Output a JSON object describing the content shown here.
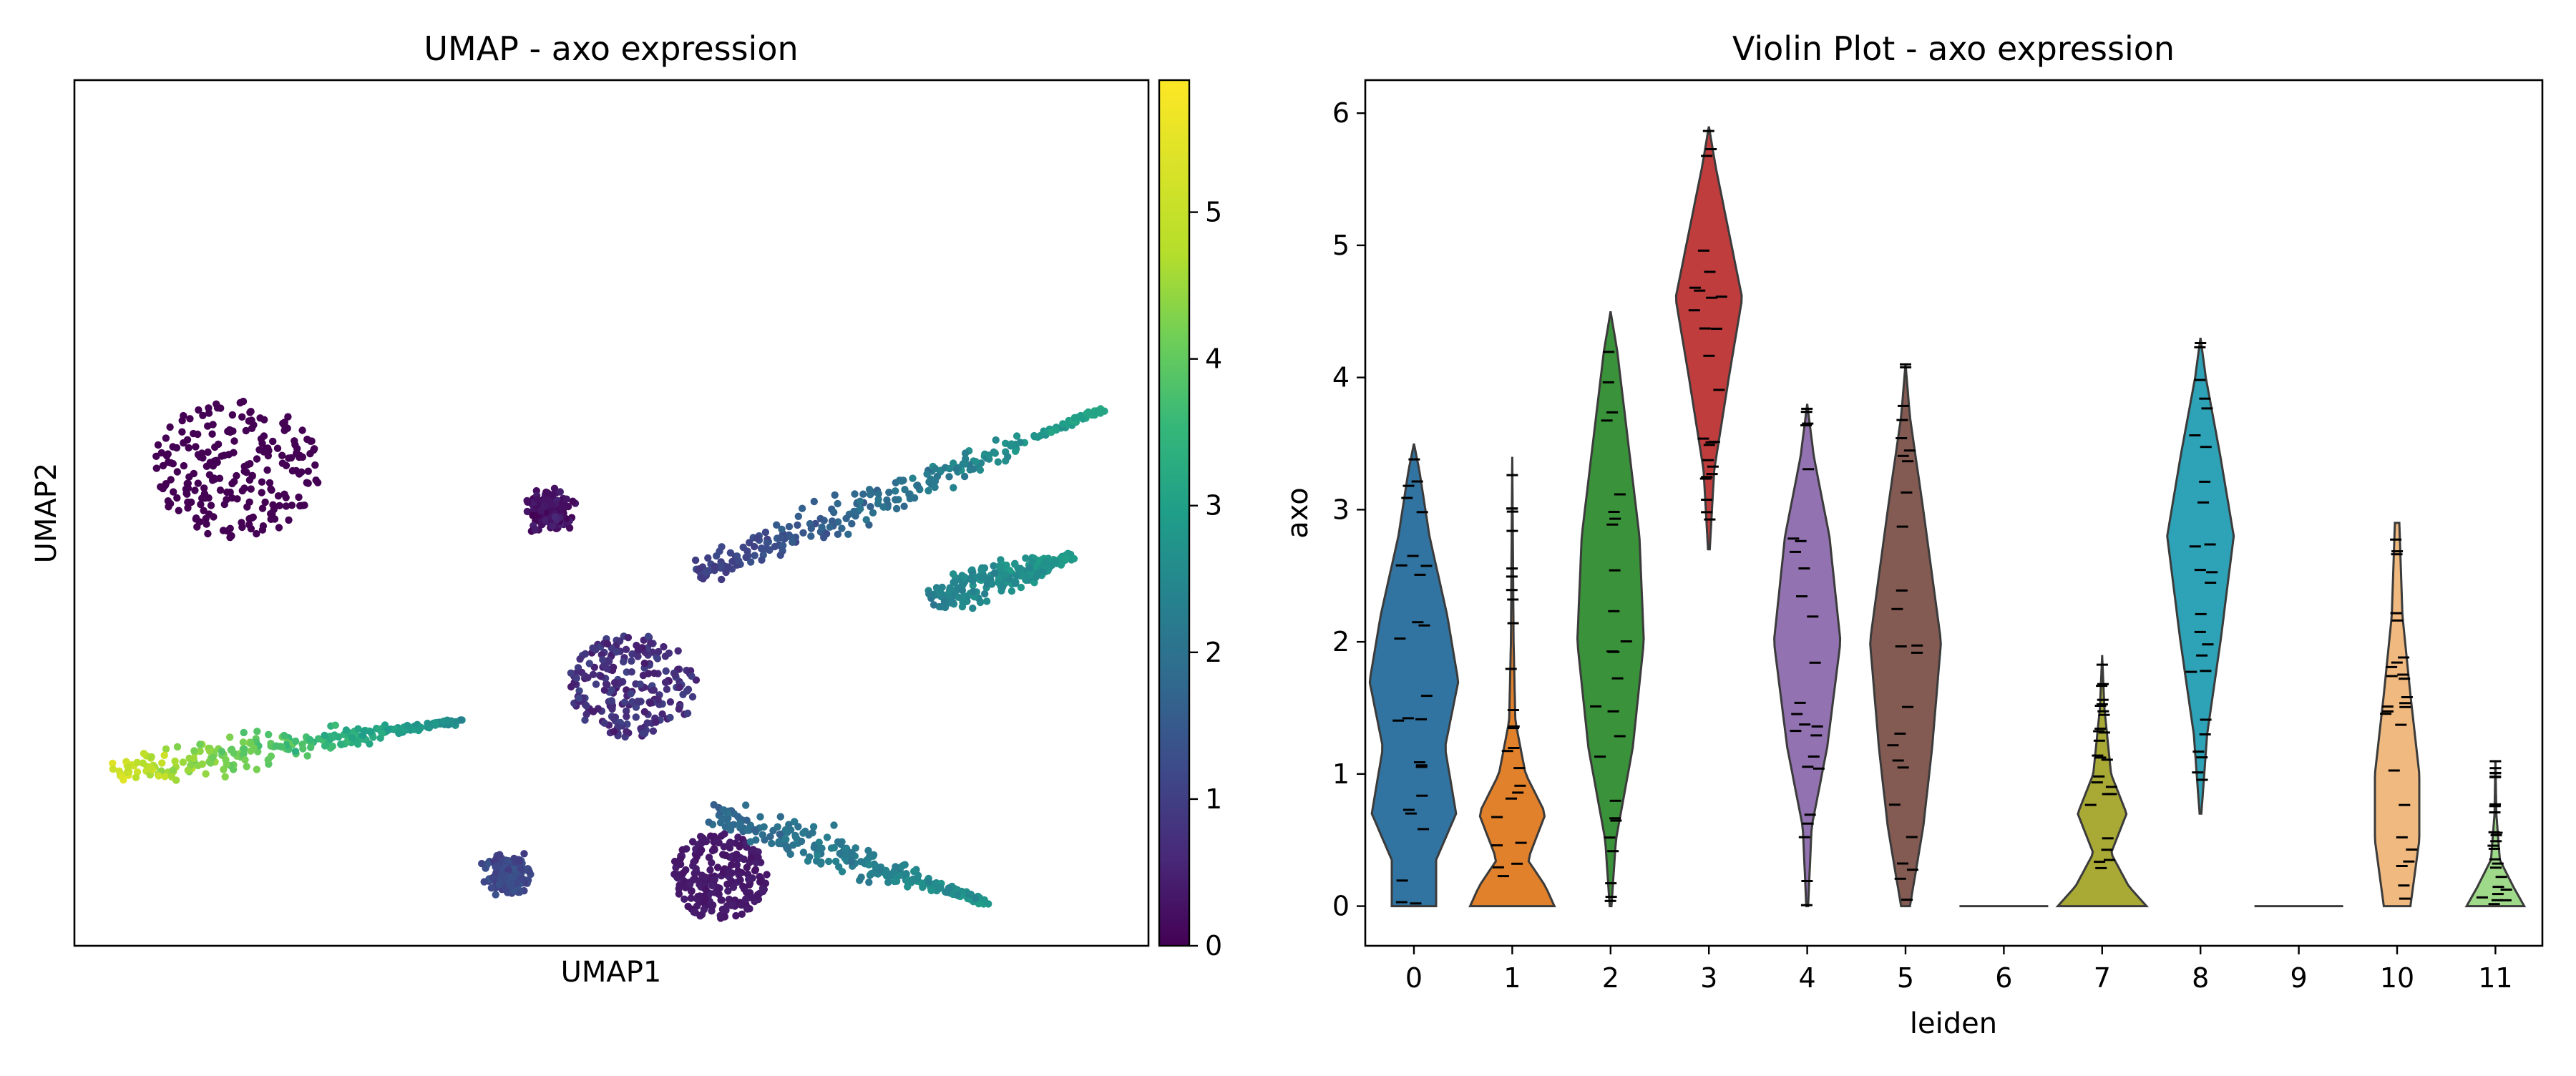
{
  "chart_data": [
    {
      "type": "scatter",
      "title": "UMAP - axo expression",
      "xlabel": "UMAP1",
      "ylabel": "UMAP2",
      "colorbar": {
        "colormap": "viridis",
        "range": [
          0,
          5.9
        ],
        "ticks": [
          "0",
          "1",
          "2",
          "3",
          "4",
          "5"
        ]
      },
      "clusters": [
        {
          "leiden": "0",
          "x": 0.15,
          "y": 0.45,
          "rx": 0.08,
          "ry": 0.08,
          "value": 0.0,
          "value_end": 0.0
        },
        {
          "leiden": "1",
          "x": 0.6,
          "y": 0.92,
          "rx": 0.045,
          "ry": 0.05,
          "value": 0.3,
          "value_end": 0.5
        },
        {
          "leiden": "2",
          "x": 0.52,
          "y": 0.7,
          "rx": 0.06,
          "ry": 0.06,
          "value": 0.4,
          "value_end": 1.2
        },
        {
          "leiden": "3",
          "x": 0.03,
          "y": 0.8,
          "x_end": 0.36,
          "y_end": 0.74,
          "value": 5.6,
          "value_end": 2.8
        },
        {
          "leiden": "4",
          "x": 0.58,
          "y": 0.57,
          "x_end": 0.96,
          "y_end": 0.38,
          "value": 1.0,
          "value_end": 3.5
        },
        {
          "leiden": "5",
          "x": 0.6,
          "y": 0.85,
          "x_end": 0.85,
          "y_end": 0.95,
          "value": 2.0,
          "value_end": 3.0
        },
        {
          "leiden": "7",
          "x": 0.44,
          "y": 0.49,
          "x_end": 0.45,
          "y_end": 0.51,
          "value": 0.2,
          "value_end": 0.4
        },
        {
          "leiden": "8",
          "x": 0.8,
          "y": 0.6,
          "x_end": 0.93,
          "y_end": 0.55,
          "value": 2.6,
          "value_end": 3.2
        },
        {
          "leiden": "10",
          "x": 0.4,
          "y": 0.91,
          "x_end": 0.41,
          "y_end": 0.93,
          "value": 1.2,
          "value_end": 1.5
        }
      ]
    },
    {
      "type": "violin",
      "title": "Violin Plot - axo expression",
      "xlabel": "leiden",
      "ylabel": "axo",
      "ylim": [
        -0.3,
        6.25
      ],
      "yticks": [
        "0",
        "1",
        "2",
        "3",
        "4",
        "5",
        "6"
      ],
      "categories": [
        "0",
        "1",
        "2",
        "3",
        "4",
        "5",
        "6",
        "7",
        "8",
        "9",
        "10",
        "11"
      ],
      "colors": [
        "#3274a1",
        "#e1812c",
        "#3a923a",
        "#c03d3e",
        "#9372b2",
        "#845b53",
        "#d684bd",
        "#a9aa35",
        "#2ea2b6",
        "#7f7f7f",
        "#f0b97f",
        "#9fd98a"
      ],
      "violins": [
        {
          "min": 0.0,
          "max": 3.5,
          "profile": [
            [
              0,
              0.5
            ],
            [
              0.35,
              0.5
            ],
            [
              0.7,
              0.95
            ],
            [
              1.2,
              0.7
            ],
            [
              1.7,
              1.0
            ],
            [
              2.2,
              0.75
            ],
            [
              2.8,
              0.35
            ],
            [
              3.3,
              0.12
            ],
            [
              3.5,
              0.0
            ]
          ]
        },
        {
          "min": 0.0,
          "max": 3.4,
          "profile": [
            [
              0,
              0.95
            ],
            [
              0.15,
              0.75
            ],
            [
              0.35,
              0.35
            ],
            [
              0.7,
              0.75
            ],
            [
              1.0,
              0.3
            ],
            [
              1.4,
              0.07
            ],
            [
              2.0,
              0.03
            ],
            [
              3.4,
              0.0
            ]
          ]
        },
        {
          "min": 0.0,
          "max": 4.5,
          "profile": [
            [
              0,
              0.02
            ],
            [
              0.5,
              0.12
            ],
            [
              1.2,
              0.5
            ],
            [
              2.0,
              0.75
            ],
            [
              2.8,
              0.65
            ],
            [
              3.5,
              0.4
            ],
            [
              4.2,
              0.15
            ],
            [
              4.5,
              0.0
            ]
          ]
        },
        {
          "min": 2.7,
          "max": 5.9,
          "profile": [
            [
              2.7,
              0.02
            ],
            [
              3.3,
              0.12
            ],
            [
              4.0,
              0.45
            ],
            [
              4.6,
              0.75
            ],
            [
              5.1,
              0.45
            ],
            [
              5.6,
              0.15
            ],
            [
              5.9,
              0.0
            ]
          ]
        },
        {
          "min": 0.0,
          "max": 3.8,
          "profile": [
            [
              0,
              0.02
            ],
            [
              0.6,
              0.1
            ],
            [
              1.2,
              0.45
            ],
            [
              2.0,
              0.75
            ],
            [
              2.8,
              0.5
            ],
            [
              3.4,
              0.15
            ],
            [
              3.8,
              0.0
            ]
          ]
        },
        {
          "min": 0.0,
          "max": 4.1,
          "profile": [
            [
              0,
              0.1
            ],
            [
              0.6,
              0.4
            ],
            [
              1.2,
              0.6
            ],
            [
              2.0,
              0.8
            ],
            [
              3.0,
              0.4
            ],
            [
              3.7,
              0.1
            ],
            [
              4.1,
              0.0
            ]
          ]
        },
        {
          "min": 0.0,
          "max": 0.0,
          "profile": [
            [
              0,
              1.0
            ]
          ]
        },
        {
          "min": 0.0,
          "max": 1.9,
          "profile": [
            [
              0,
              1.0
            ],
            [
              0.15,
              0.6
            ],
            [
              0.4,
              0.2
            ],
            [
              0.7,
              0.55
            ],
            [
              1.0,
              0.2
            ],
            [
              1.5,
              0.05
            ],
            [
              1.9,
              0.0
            ]
          ]
        },
        {
          "min": 0.7,
          "max": 4.3,
          "profile": [
            [
              0.7,
              0.02
            ],
            [
              1.3,
              0.15
            ],
            [
              2.0,
              0.45
            ],
            [
              2.8,
              0.75
            ],
            [
              3.4,
              0.45
            ],
            [
              4.0,
              0.12
            ],
            [
              4.3,
              0.0
            ]
          ]
        },
        {
          "min": 0.0,
          "max": 0.0,
          "profile": [
            [
              0,
              1.0
            ]
          ]
        },
        {
          "min": 0.0,
          "max": 2.9,
          "profile": [
            [
              0,
              0.3
            ],
            [
              0.5,
              0.5
            ],
            [
              1.0,
              0.5
            ],
            [
              1.6,
              0.3
            ],
            [
              2.2,
              0.12
            ],
            [
              2.9,
              0.05
            ]
          ]
        },
        {
          "min": 0.0,
          "max": 1.1,
          "profile": [
            [
              0,
              0.65
            ],
            [
              0.15,
              0.4
            ],
            [
              0.35,
              0.1
            ],
            [
              0.7,
              0.02
            ],
            [
              1.1,
              0.0
            ]
          ]
        }
      ]
    }
  ]
}
